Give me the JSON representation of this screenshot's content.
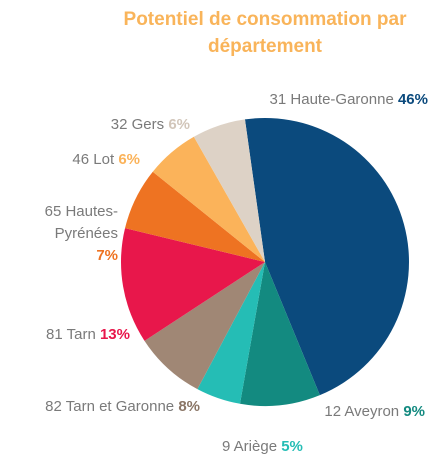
{
  "chart_data": {
    "type": "pie",
    "title": "Potentiel de consommation par département",
    "categories": [
      "31 Haute-Garonne",
      "12 Aveyron",
      "9 Ariège",
      "82 Tarn et Garonne",
      "81 Tarn",
      "65 Hautes-Pyrénées",
      "46 Lot",
      "32 Gers"
    ],
    "values": [
      46,
      9,
      5,
      8,
      13,
      7,
      6,
      6
    ],
    "value_labels": [
      "46%",
      "9%",
      "5%",
      "8%",
      "13%",
      "7%",
      "6%",
      "6%"
    ],
    "colors": [
      "#0b4a7d",
      "#138a80",
      "#25bdb5",
      "#a08775",
      "#e8174b",
      "#ee7322",
      "#fbb35a",
      "#ddd2c6"
    ]
  }
}
